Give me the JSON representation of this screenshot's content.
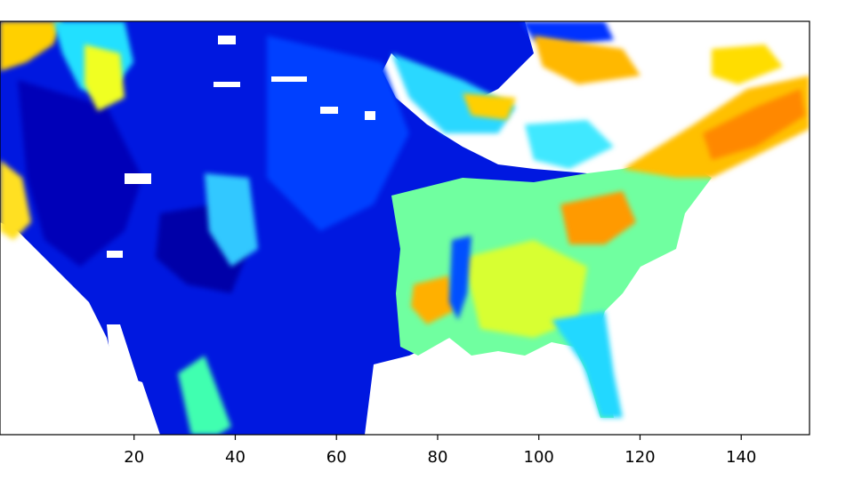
{
  "chart_data": {
    "type": "heatmap",
    "title": "",
    "xlabel": "",
    "ylabel": "",
    "xlim": [
      -6.5,
      153.5
    ],
    "x_ticks": [
      20,
      40,
      60,
      80,
      100,
      120,
      140
    ],
    "x_tick_labels": [
      "20",
      "40",
      "60",
      "80",
      "100",
      "120",
      "140"
    ],
    "grid": false,
    "colormap": "jet",
    "missing_value_color": "#ffffff",
    "frame_color": "#000000",
    "region": "contiguous United States (gridded field, values shown only by color)"
  }
}
